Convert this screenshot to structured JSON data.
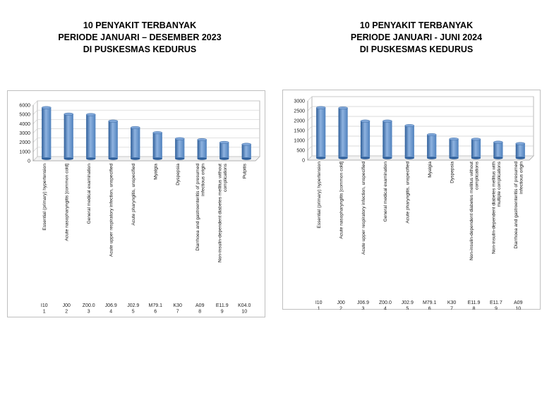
{
  "colors": {
    "bar": "#4f81bd",
    "bar_dark": "#2f5f9a",
    "bar_light": "#8fb3e0",
    "grid": "#d0d0d0",
    "frame": "#bfbfbf"
  },
  "chart_data": [
    {
      "type": "bar",
      "title": [
        "10 PENYAKIT TERBANYAK",
        "PERIODE JANUARI – DESEMBER 2023",
        "DI PUSKESMAS KEDURUS"
      ],
      "categories": [
        "Essential (primary) hypertension",
        "Acute nasopharyngitis [common cold]",
        "General medical examination",
        "Acute upper respiratory infection, unspecified",
        "Acute pharyngitis, unspecified",
        "Myalgia",
        "Dyspepsia",
        "Diarrhoea and gastroenteritis of presumed infectious origin",
        "Non-insulin-dependent diabetes mellitus without complications",
        "Pulpitis"
      ],
      "codes": [
        "I10",
        "J00",
        "Z00.0",
        "J06.9",
        "J02.9",
        "M79.1",
        "K30",
        "A09",
        "E11.9",
        "K04.0"
      ],
      "ranks": [
        "1",
        "2",
        "3",
        "4",
        "5",
        "6",
        "7",
        "8",
        "9",
        "10"
      ],
      "values": [
        5500,
        4800,
        4750,
        4050,
        3350,
        2800,
        2150,
        2050,
        1750,
        1550
      ],
      "yticks": [
        0,
        1000,
        2000,
        3000,
        4000,
        5000,
        6000
      ],
      "ylim": [
        0,
        6000
      ],
      "xlabel": "",
      "ylabel": ""
    },
    {
      "type": "bar",
      "title": [
        "10 PENYAKIT TERBANYAK",
        "PERIODE JANUARI - JUNI 2024",
        "DI PUSKESMAS KEDURUS"
      ],
      "categories": [
        "Essential (primary) hypertension",
        "Acute nasopharyngitis [common cold]",
        "Acute upper respiratory infection, unspecified",
        "General medical examination",
        "Acute pharyngitis, unspecified",
        "Myalgia",
        "Dyspepsia",
        "Non-insulin-dependent diabetes mellitus without complications",
        "Non-insulin-dependent diabetes mellitus with multiple complications",
        "Diarrhoea and gastroenteritis of presumed infectious origin"
      ],
      "codes": [
        "I10",
        "J00",
        "J06.9",
        "Z00.0",
        "J02.9",
        "M79.1",
        "K30",
        "E11.9",
        "E11.7",
        "A09"
      ],
      "ranks": [
        "1",
        "2",
        "3",
        "4",
        "5",
        "6",
        "7",
        "8",
        "9",
        "10"
      ],
      "values": [
        2550,
        2530,
        1870,
        1870,
        1640,
        1180,
        960,
        950,
        800,
        730
      ],
      "yticks": [
        0,
        500,
        1000,
        1500,
        2000,
        2500,
        3000
      ],
      "ylim": [
        0,
        3000
      ],
      "xlabel": "",
      "ylabel": ""
    }
  ]
}
